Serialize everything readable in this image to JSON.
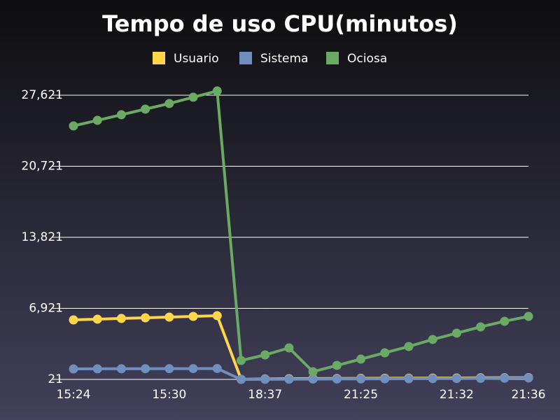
{
  "chart_data": {
    "type": "line",
    "title": "Tempo de uso CPU(minutos)",
    "categories": [
      "15:24",
      null,
      null,
      null,
      "15:30",
      null,
      null,
      null,
      "18:37",
      null,
      null,
      null,
      "21:25",
      null,
      null,
      null,
      "21:32",
      null,
      null,
      "21:36"
    ],
    "series": [
      {
        "name": "Usuario",
        "color": "#ffd54a",
        "values": [
          5800,
          5870,
          5940,
          6005,
          6070,
          6140,
          6210,
          30,
          60,
          90,
          100,
          110,
          120,
          130,
          140,
          150,
          160,
          170,
          180,
          190
        ]
      },
      {
        "name": "Sistema",
        "color": "#6f8fbf",
        "values": [
          1040,
          1050,
          1055,
          1060,
          1065,
          1070,
          1080,
          20,
          30,
          40,
          50,
          60,
          70,
          80,
          90,
          100,
          110,
          120,
          140,
          160
        ]
      },
      {
        "name": "Ociosa",
        "color": "#6aaa64",
        "values": [
          24640,
          25180,
          25725,
          26270,
          26810,
          27425,
          28035,
          1857,
          2400,
          3080,
          770,
          1380,
          1990,
          2605,
          3215,
          3900,
          4510,
          5120,
          5665,
          6140
        ]
      }
    ],
    "ylim": [
      21,
      28100
    ],
    "yticks": [
      {
        "value": 21,
        "label": "21"
      },
      {
        "value": 6921,
        "label": "6,921"
      },
      {
        "value": 13821,
        "label": "13,821"
      },
      {
        "value": 20721,
        "label": "20,721"
      },
      {
        "value": 27621,
        "label": "27,621"
      }
    ],
    "grid": true
  }
}
